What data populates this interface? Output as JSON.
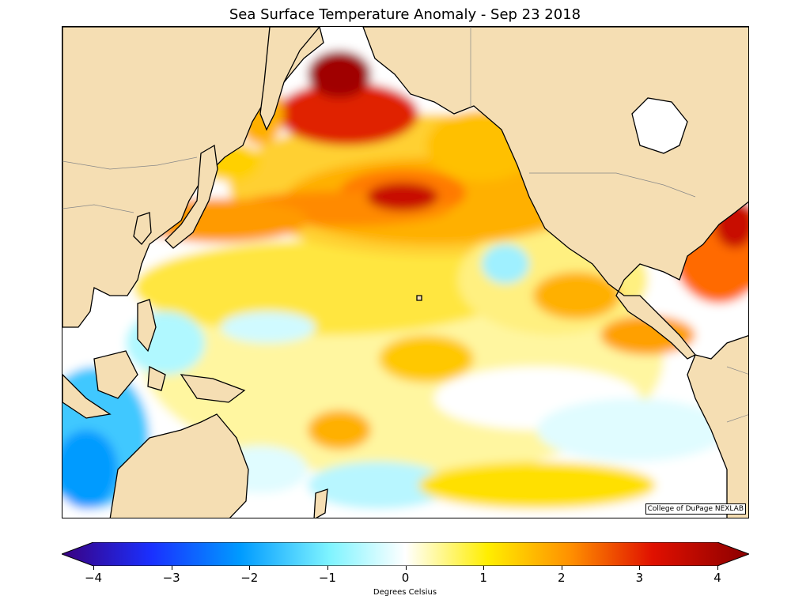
{
  "title": "Sea Surface Temperature Anomaly - Sep 23 2018",
  "credit": "College of DuPage NEXLAB",
  "colorbar": {
    "label": "Degrees Celsius",
    "ticks": [
      "−4",
      "−3",
      "−2",
      "−1",
      "0",
      "1",
      "2",
      "3",
      "4"
    ],
    "range": [
      -4,
      4
    ]
  },
  "colors": {
    "land": "#f5deb3",
    "cold_extreme": "#3a007f",
    "cold": "#009bff",
    "cool": "#7ff4ff",
    "neutral": "#ffffff",
    "warm": "#ffe600",
    "hot": "#ff6a00",
    "warm_extreme": "#8b0000"
  }
}
